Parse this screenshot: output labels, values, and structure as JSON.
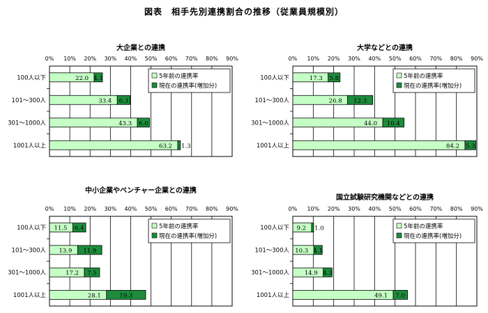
{
  "title": "図表　相手先別連携割合の推移（従業員規模別）",
  "colors": {
    "past": "#c6ffc6",
    "increase": "#1e8c3c",
    "edge": "#000000"
  },
  "chart_data": [
    {
      "type": "bar",
      "stacked": true,
      "orientation": "horizontal",
      "title": "大企業との連携",
      "categories": [
        "100人以下",
        "101～300人",
        "301～1000人",
        "1001人以上"
      ],
      "series": [
        {
          "name": "5年前の連携率",
          "values": [
            22.0,
            33.4,
            43.3,
            63.2
          ]
        },
        {
          "name": "現在の連携率(増加分)",
          "values": [
            4.1,
            6.3,
            6.0,
            1.3
          ]
        }
      ],
      "value_labels": [
        [
          "22.0",
          "33.4",
          "43.3",
          "63.2"
        ],
        [
          "4.1",
          "6.3",
          "6.0",
          "1.3"
        ]
      ],
      "xlim": [
        0,
        90
      ],
      "ticks": [
        "0%",
        "10%",
        "20%",
        "30%",
        "40%",
        "50%",
        "60%",
        "70%",
        "80%",
        "90%"
      ],
      "grid": true,
      "legend": "top-right"
    },
    {
      "type": "bar",
      "stacked": true,
      "orientation": "horizontal",
      "title": "大学などとの連携",
      "categories": [
        "100人以下",
        "101～300人",
        "301～1000人",
        "1001人以上"
      ],
      "series": [
        {
          "name": "5年前の連携率",
          "values": [
            17.3,
            26.8,
            44.0,
            84.2
          ]
        },
        {
          "name": "現在の連携率(増加分)",
          "values": [
            5.8,
            12.3,
            10.4,
            5.3
          ]
        }
      ],
      "value_labels": [
        [
          "17.3",
          "26.8",
          "44.0",
          "84.2"
        ],
        [
          "5.8",
          "12.3",
          "10.4",
          "5.3"
        ]
      ],
      "xlim": [
        0,
        90
      ],
      "ticks": [
        "0%",
        "10%",
        "20%",
        "30%",
        "40%",
        "50%",
        "60%",
        "70%",
        "80%",
        "90%"
      ],
      "grid": true,
      "legend": "top-right"
    },
    {
      "type": "bar",
      "stacked": true,
      "orientation": "horizontal",
      "title": "中小企業やベンチャー企業との連携",
      "categories": [
        "100人以下",
        "101～300人",
        "301～1000人",
        "1001人以上"
      ],
      "series": [
        {
          "name": "5年前の連携率",
          "values": [
            11.5,
            13.9,
            17.2,
            28.1
          ]
        },
        {
          "name": "現在の連携率(増加分)",
          "values": [
            6.4,
            11.9,
            7.5,
            19.3
          ]
        }
      ],
      "value_labels": [
        [
          "11.5",
          "13.9",
          "17.2",
          "28.1"
        ],
        [
          "6.4",
          "11.9",
          "7.5",
          "19.3"
        ]
      ],
      "xlim": [
        0,
        90
      ],
      "ticks": [
        "0%",
        "10%",
        "20%",
        "30%",
        "40%",
        "50%",
        "60%",
        "70%",
        "80%",
        "90%"
      ],
      "grid": true,
      "legend": "top-right"
    },
    {
      "type": "bar",
      "stacked": true,
      "orientation": "horizontal",
      "title": "国立試験研究機関などとの連携",
      "categories": [
        "100人以下",
        "101～300人",
        "301～1000人",
        "1001人以上"
      ],
      "series": [
        {
          "name": "5年前の連携率",
          "values": [
            9.2,
            10.3,
            14.9,
            49.1
          ]
        },
        {
          "name": "現在の連携率(増加分)",
          "values": [
            1.0,
            4.1,
            4.3,
            7.0
          ]
        }
      ],
      "value_labels": [
        [
          "9.2",
          "10.3",
          "14.9",
          "49.1"
        ],
        [
          "1.0",
          "4.1",
          "4.3",
          "7.0"
        ]
      ],
      "xlim": [
        0,
        90
      ],
      "ticks": [
        "0%",
        "10%",
        "20%",
        "30%",
        "40%",
        "50%",
        "60%",
        "70%",
        "80%",
        "90%"
      ],
      "grid": true,
      "legend": "top-right"
    }
  ]
}
